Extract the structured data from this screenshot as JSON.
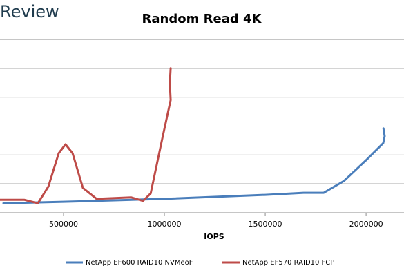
{
  "brand": "Review",
  "chart_data": {
    "type": "line",
    "title": "Random Read 4K",
    "x_label": "IOPS",
    "xlim": [
      185000,
      2188000
    ],
    "xticks": [
      500000,
      1000000,
      1500000,
      2000000
    ],
    "ylim": [
      0,
      6
    ],
    "ygrid": [
      0,
      1,
      2,
      3,
      4,
      5,
      6
    ],
    "legend": "bottom",
    "series": [
      {
        "name": "NetApp EF600 RAID10 NVMeoF",
        "color": "#4a7ebb",
        "x": [
          202000,
          500000,
          1000000,
          1500000,
          1690000,
          1790000,
          1890000,
          2000000,
          2085000,
          2092000,
          2086000
        ],
        "values": [
          0.33,
          0.38,
          0.48,
          0.62,
          0.69,
          0.69,
          1.1,
          1.82,
          2.41,
          2.65,
          2.92
        ]
      },
      {
        "name": "NetApp EF570 RAID10 FCP",
        "color": "#be4b48",
        "x": [
          185000,
          305000,
          373000,
          425000,
          476000,
          510000,
          545000,
          596000,
          664000,
          836000,
          894000,
          932000,
          990000,
          1031000,
          1027000,
          1031000
        ],
        "values": [
          0.45,
          0.45,
          0.33,
          0.91,
          2.06,
          2.37,
          2.06,
          0.86,
          0.48,
          0.53,
          0.41,
          0.67,
          2.58,
          3.9,
          4.5,
          5.0
        ]
      }
    ]
  }
}
